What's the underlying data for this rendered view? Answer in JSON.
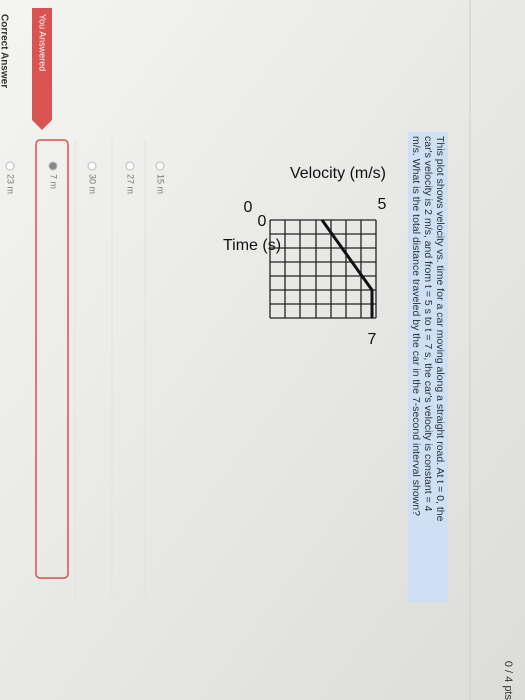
{
  "header": {
    "points": "0 / 4 pts"
  },
  "question": {
    "lines": [
      "This plot shows velocity vs. time for a car moving along a straight road.  At t = 0, the",
      "car's velocity is 2 m/s, and from t = 5 s to t = 7 s, the car's velocity is constant = 4",
      "m/s. What is the total distance traveled by the car in the 7-second interval shown?"
    ]
  },
  "graph": {
    "y_label": "Velocity (m/s)",
    "x_label": "Time (s)",
    "y_max": "5",
    "y_min": "0",
    "x_min": "0",
    "x_max": "7"
  },
  "options": [
    "15 m",
    "27 m",
    "30 m",
    "7 m",
    "23 m"
  ],
  "tags": {
    "you_answered": "You Answered",
    "correct_answer": "Correct Answer"
  }
}
